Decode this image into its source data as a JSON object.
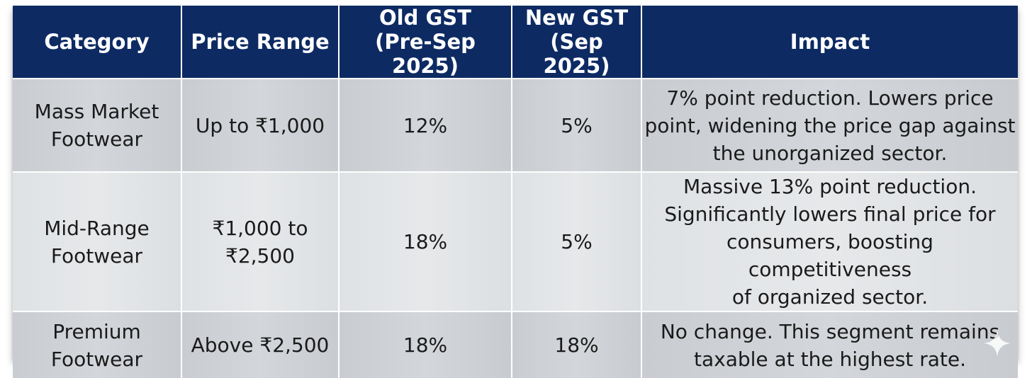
{
  "table": {
    "headers": [
      [
        "Category"
      ],
      [
        "Price Range"
      ],
      [
        "Old GST",
        "(Pre-Sep 2025)"
      ],
      [
        "New GST",
        "(Sep 2025)"
      ],
      [
        "Impact"
      ]
    ],
    "rows": [
      {
        "category": [
          "Mass Market",
          "Footwear"
        ],
        "price_range": [
          "Up to ₹1,000"
        ],
        "old_gst": "12%",
        "new_gst": "5%",
        "impact": [
          "7% point reduction. Lowers price",
          "point, widening the price gap against",
          "the unorganized sector."
        ]
      },
      {
        "category": [
          "Mid-Range",
          "Footwear"
        ],
        "price_range": [
          "₹1,000 to",
          "₹2,500"
        ],
        "old_gst": "18%",
        "new_gst": "5%",
        "impact": [
          "Massive 13% point reduction.",
          "Significantly lowers final price for",
          "consumers, boosting competitiveness",
          "of organized sector."
        ]
      },
      {
        "category": [
          "Premium",
          "Footwear"
        ],
        "price_range": [
          "Above ₹2,500"
        ],
        "old_gst": "18%",
        "new_gst": "18%",
        "impact": [
          "No change. This segment remains",
          "taxable at the highest rate."
        ]
      }
    ]
  },
  "decorations": {
    "sparkle_icon": "sparkle-icon",
    "header_color": "#0d2a63"
  }
}
